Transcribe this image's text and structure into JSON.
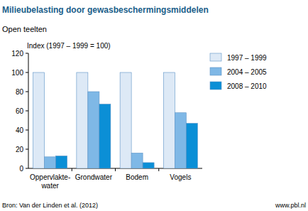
{
  "chart_data": {
    "type": "bar",
    "title": "Milieubelasting door gewasbeschermingsmiddelen",
    "subtitle": "Open teelten",
    "y_label": "Index (1997 – 1999 = 100)",
    "categories": [
      "Oppervlakte-water",
      "Grondwater",
      "Bodem",
      "Vogels"
    ],
    "series": [
      {
        "name": "1997 – 1999",
        "color": "#dde9f6",
        "values": [
          100,
          100,
          100,
          100
        ]
      },
      {
        "name": "2004 – 2005",
        "color": "#7fb8e6",
        "values": [
          12,
          80,
          16,
          58
        ]
      },
      {
        "name": "2008 – 2010",
        "color": "#0b8fd6",
        "values": [
          13,
          67,
          6,
          47
        ]
      }
    ],
    "ylim": [
      0,
      120
    ],
    "yticks": [
      0,
      20,
      40,
      60,
      80,
      100,
      120
    ],
    "grid": false,
    "legend": "right",
    "annotations": [
      "Bron: Van der Linden et al. (2012)",
      "www.pbl.nl"
    ]
  }
}
